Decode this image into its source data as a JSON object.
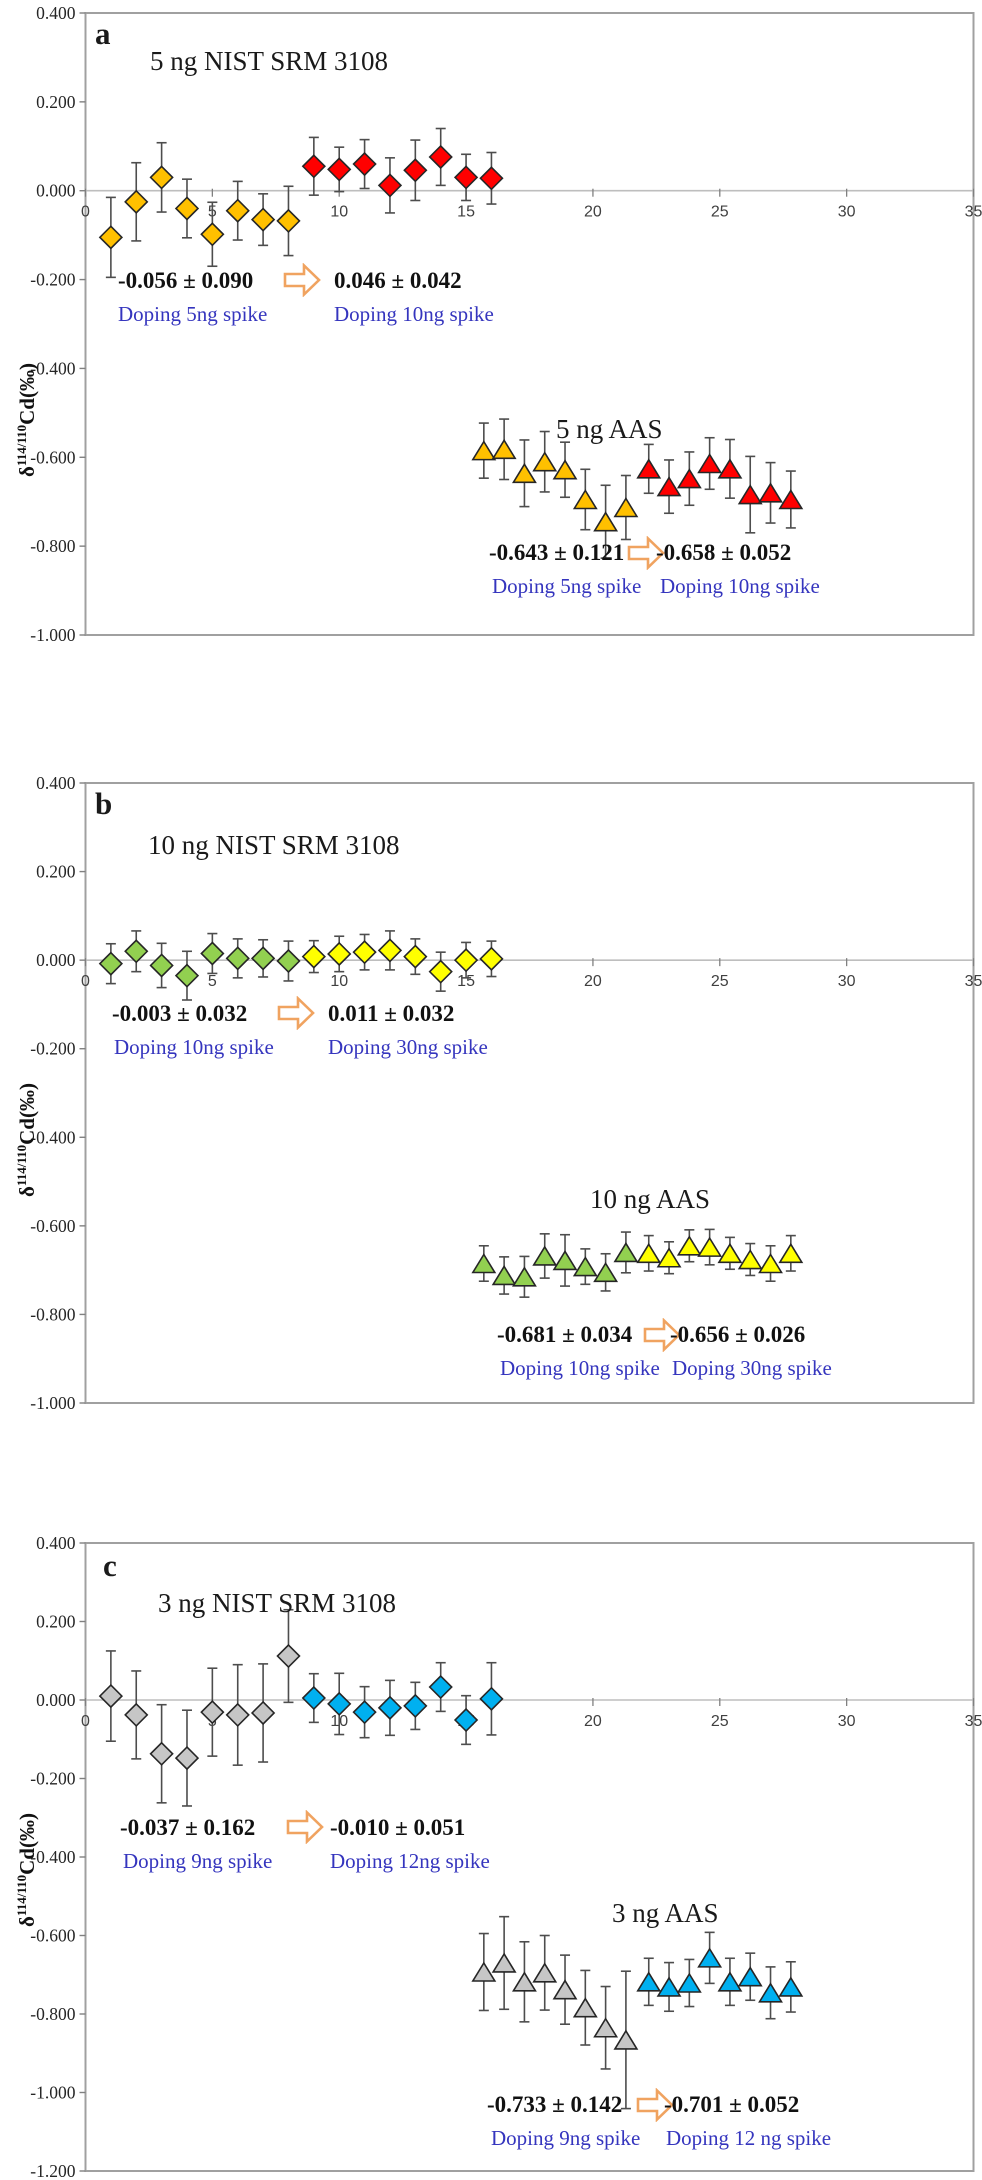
{
  "figure": {
    "ylabel": {
      "prefix": "δ",
      "sup": "114/110",
      "suffix": "Cd(‰)"
    },
    "colors": {
      "orange": "#FFC000",
      "red": "#FF0000",
      "green": "#92D050",
      "yellow": "#FFFF00",
      "gray": "#C6C6C6",
      "blue": "#00B0F0",
      "doping_text": "#3535BE",
      "arrow_outline": "#F0A360",
      "axis_box": "#A0A0A0",
      "zero_line": "#BEBEBE",
      "error_bar": "#4D4D4D"
    }
  },
  "chart_data": [
    {
      "type": "scatter",
      "panel": "a",
      "title": "5 ng NIST SRM 3108",
      "aas_label": "5 ng AAS",
      "xlim": [
        0,
        35
      ],
      "ylim": [
        -1.0,
        0.4
      ],
      "xticks": [
        0,
        5,
        10,
        15,
        20,
        25,
        30,
        35
      ],
      "yticks": [
        "0.400",
        "0.200",
        "0.000",
        "-0.200",
        "-0.400",
        "-0.600",
        "-0.800",
        "-1.000"
      ],
      "grid": false,
      "series": [
        {
          "name": "5 ng NIST SRM 3108 - doping 5ng spike",
          "marker": "diamond",
          "color": "#FFC000",
          "x": [
            1,
            2,
            3,
            4,
            5,
            6,
            7,
            8
          ],
          "y": [
            -0.105,
            -0.025,
            0.03,
            -0.04,
            -0.098,
            -0.045,
            -0.065,
            -0.068
          ],
          "err": [
            0.09,
            0.088,
            0.078,
            0.066,
            0.072,
            0.066,
            0.058,
            0.078
          ]
        },
        {
          "name": "5 ng NIST SRM 3108 - doping 10ng spike",
          "marker": "diamond",
          "color": "#FF0000",
          "x": [
            9,
            10,
            11,
            12,
            13,
            14,
            15,
            16
          ],
          "y": [
            0.055,
            0.048,
            0.06,
            0.012,
            0.046,
            0.076,
            0.03,
            0.028
          ],
          "err": [
            0.065,
            0.05,
            0.055,
            0.062,
            0.068,
            0.064,
            0.052,
            0.058
          ]
        },
        {
          "name": "5 ng AAS - doping 5ng spike",
          "marker": "triangle",
          "color": "#FFC000",
          "x": [
            15.7,
            16.5,
            17.3,
            18.1,
            18.9,
            19.7,
            20.5,
            21.3
          ],
          "y": [
            -0.585,
            -0.582,
            -0.636,
            -0.61,
            -0.628,
            -0.695,
            -0.745,
            -0.713
          ],
          "err": [
            0.062,
            0.068,
            0.075,
            0.068,
            0.062,
            0.068,
            0.082,
            0.072
          ]
        },
        {
          "name": "5 ng AAS - doping 10ng spike",
          "marker": "triangle",
          "color": "#FF0000",
          "x": [
            22.2,
            23.0,
            23.8,
            24.6,
            25.4,
            26.2,
            27.0,
            27.8
          ],
          "y": [
            -0.626,
            -0.666,
            -0.648,
            -0.614,
            -0.626,
            -0.684,
            -0.68,
            -0.695
          ],
          "err": [
            0.055,
            0.06,
            0.06,
            0.058,
            0.066,
            0.086,
            0.068,
            0.064
          ]
        }
      ],
      "stats": [
        {
          "value": "-0.056 ± 0.090",
          "label": "Doping 5ng spike",
          "value2": "0.046 ± 0.042",
          "label2": "Doping 10ng spike"
        },
        {
          "value": "-0.643 ± 0.121",
          "label": "Doping 5ng spike",
          "value2": "-0.658 ± 0.052",
          "label2": "Doping 10ng spike"
        }
      ]
    },
    {
      "type": "scatter",
      "panel": "b",
      "title": "10 ng NIST SRM 3108",
      "aas_label": "10 ng AAS",
      "xlim": [
        0,
        35
      ],
      "ylim": [
        -1.0,
        0.4
      ],
      "xticks": [
        0,
        5,
        10,
        15,
        20,
        25,
        30,
        35
      ],
      "yticks": [
        "0.400",
        "0.200",
        "0.000",
        "-0.200",
        "-0.400",
        "-0.600",
        "-0.800",
        "-1.000"
      ],
      "grid": false,
      "series": [
        {
          "name": "10 ng NIST SRM 3108 - doping 10ng spike",
          "marker": "diamond",
          "color": "#92D050",
          "x": [
            1,
            2,
            3,
            4,
            5,
            6,
            7,
            8
          ],
          "y": [
            -0.008,
            0.02,
            -0.012,
            -0.035,
            0.015,
            0.004,
            0.004,
            -0.002
          ],
          "err": [
            0.045,
            0.046,
            0.05,
            0.055,
            0.045,
            0.044,
            0.042,
            0.045
          ]
        },
        {
          "name": "10 ng NIST SRM 3108 - doping 30ng spike",
          "marker": "diamond",
          "color": "#FFFF00",
          "x": [
            9,
            10,
            11,
            12,
            13,
            14,
            15,
            16
          ],
          "y": [
            0.008,
            0.014,
            0.018,
            0.022,
            0.008,
            -0.026,
            0.0,
            0.003
          ],
          "err": [
            0.036,
            0.04,
            0.04,
            0.044,
            0.04,
            0.044,
            0.04,
            0.04
          ]
        },
        {
          "name": "10 ng AAS - doping 10ng spike",
          "marker": "triangle",
          "color": "#92D050",
          "x": [
            15.7,
            16.5,
            17.3,
            18.1,
            18.9,
            19.7,
            20.5,
            21.3
          ],
          "y": [
            -0.685,
            -0.712,
            -0.715,
            -0.668,
            -0.678,
            -0.692,
            -0.705,
            -0.66
          ],
          "err": [
            0.04,
            0.042,
            0.046,
            0.05,
            0.058,
            0.04,
            0.042,
            0.046
          ]
        },
        {
          "name": "10 ng AAS - doping 30ng spike",
          "marker": "triangle",
          "color": "#FFFF00",
          "x": [
            22.2,
            23.0,
            23.8,
            24.6,
            25.4,
            26.2,
            27.0,
            27.8
          ],
          "y": [
            -0.662,
            -0.672,
            -0.645,
            -0.648,
            -0.662,
            -0.676,
            -0.685,
            -0.662
          ],
          "err": [
            0.04,
            0.036,
            0.036,
            0.04,
            0.036,
            0.036,
            0.04,
            0.04
          ]
        }
      ],
      "stats": [
        {
          "value": "-0.003 ± 0.032",
          "label": "Doping 10ng spike",
          "value2": "0.011 ± 0.032",
          "label2": "Doping 30ng spike"
        },
        {
          "value": "-0.681 ± 0.034",
          "label": "Doping 10ng spike",
          "value2": "-0.656 ± 0.026",
          "label2": "Doping 30ng spike"
        }
      ]
    },
    {
      "type": "scatter",
      "panel": "c",
      "title": "3 ng NIST SRM 3108",
      "aas_label": "3 ng AAS",
      "xlim": [
        0,
        35
      ],
      "ylim": [
        -1.2,
        0.4
      ],
      "xticks": [
        0,
        5,
        10,
        15,
        20,
        25,
        30,
        35
      ],
      "yticks": [
        "0.400",
        "0.200",
        "0.000",
        "-0.200",
        "-0.400",
        "-0.600",
        "-0.800",
        "-1.000",
        "-1.200"
      ],
      "grid": false,
      "series": [
        {
          "name": "3 ng NIST SRM 3108 - doping 9ng spike",
          "marker": "diamond",
          "color": "#C6C6C6",
          "x": [
            1,
            2,
            3,
            4,
            5,
            6,
            7,
            8
          ],
          "y": [
            0.01,
            -0.038,
            -0.137,
            -0.148,
            -0.031,
            -0.038,
            -0.033,
            0.112
          ],
          "err": [
            0.115,
            0.112,
            0.125,
            0.122,
            0.112,
            0.128,
            0.125,
            0.118
          ]
        },
        {
          "name": "3 ng NIST SRM 3108 - doping 12ng spike",
          "marker": "diamond",
          "color": "#00B0F0",
          "x": [
            9,
            10,
            11,
            12,
            13,
            14,
            15,
            16
          ],
          "y": [
            0.005,
            -0.01,
            -0.031,
            -0.02,
            -0.015,
            0.033,
            -0.051,
            0.003
          ],
          "err": [
            0.062,
            0.078,
            0.065,
            0.07,
            0.06,
            0.062,
            0.062,
            0.092
          ]
        },
        {
          "name": "3 ng AAS - doping 9ng spike",
          "marker": "triangle",
          "color": "#C6C6C6",
          "x": [
            15.7,
            16.5,
            17.3,
            18.1,
            18.9,
            19.7,
            20.5,
            21.3
          ],
          "y": [
            -0.693,
            -0.67,
            -0.718,
            -0.695,
            -0.738,
            -0.784,
            -0.835,
            -0.866
          ],
          "err": [
            0.098,
            0.118,
            0.102,
            0.095,
            0.088,
            0.095,
            0.105,
            0.175
          ]
        },
        {
          "name": "3 ng AAS - doping 12ng spike",
          "marker": "triangle",
          "color": "#00B0F0",
          "x": [
            22.2,
            23.0,
            23.8,
            24.6,
            25.4,
            26.2,
            27.0,
            27.8
          ],
          "y": [
            -0.718,
            -0.731,
            -0.721,
            -0.657,
            -0.718,
            -0.705,
            -0.746,
            -0.731
          ],
          "err": [
            0.06,
            0.062,
            0.06,
            0.065,
            0.06,
            0.06,
            0.066,
            0.064
          ]
        }
      ],
      "stats": [
        {
          "value": "-0.037 ± 0.162",
          "label": "Doping 9ng spike",
          "value2": "-0.010 ± 0.051",
          "label2": "Doping 12ng spike"
        },
        {
          "value": "-0.733 ± 0.142",
          "label": "Doping 9ng spike",
          "value2": "-0.701 ± 0.052",
          "label2": "Doping 12 ng spike"
        }
      ]
    }
  ]
}
